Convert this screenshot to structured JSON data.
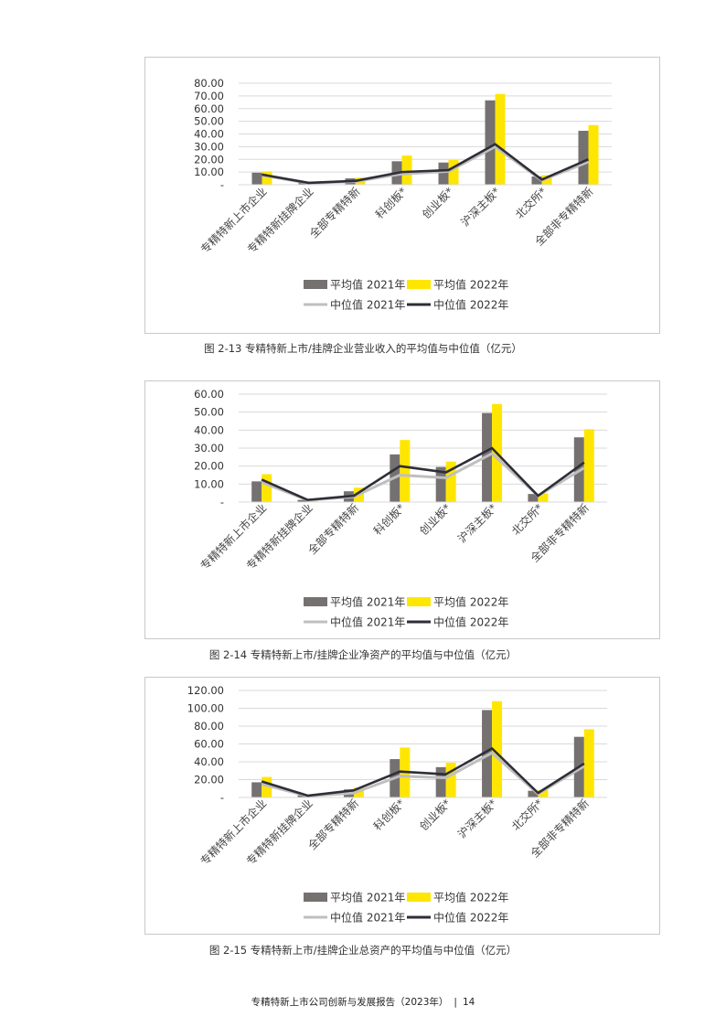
{
  "colors": {
    "avg2021": "#767171",
    "avg2022": "#ffe600",
    "med2021": "#bfbfbf",
    "med2022": "#2e2e38",
    "grid": "#d9d9d9"
  },
  "figures": [
    {
      "caption": "图 2-13 专精特新上市/挂牌企业营业收入的平均值与中位值（亿元）",
      "chart_data": {
        "type": "bar",
        "categories": [
          "专精特新上市企业",
          "专精特新挂牌企业",
          "全部专精特新",
          "科创板*",
          "创业板*",
          "沪深主板*",
          "北交所*",
          "全部非专精特新"
        ],
        "ylim": [
          0,
          80
        ],
        "yticks": [
          0,
          10,
          20,
          30,
          40,
          50,
          60,
          70,
          80
        ],
        "ytick_labels": [
          "-",
          "10.00",
          "20.00",
          "30.00",
          "40.00",
          "50.00",
          "60.00",
          "70.00",
          "80.00"
        ],
        "bar_series": [
          {
            "name": "平均值 2021年",
            "values": [
              9.5,
              1.5,
              5.0,
              18.5,
              17.5,
              66.5,
              6.5,
              42.5
            ]
          },
          {
            "name": "平均值 2022年",
            "values": [
              10.5,
              1.8,
              5.5,
              23.0,
              19.5,
              71.5,
              7.5,
              47.0
            ]
          }
        ],
        "line_series": [
          {
            "name": "中位值 2021年",
            "values": [
              7.5,
              1.2,
              2.5,
              8.5,
              10.5,
              30.0,
              3.5,
              18.0
            ]
          },
          {
            "name": "中位值 2022年",
            "values": [
              8.0,
              1.5,
              3.0,
              10.0,
              11.5,
              32.0,
              4.0,
              20.0
            ]
          }
        ],
        "legend_placement": "bottom",
        "grid": true
      }
    },
    {
      "caption": "图 2-14 专精特新上市/挂牌企业净资产的平均值与中位值（亿元）",
      "chart_data": {
        "type": "bar",
        "categories": [
          "专精特新上市企业",
          "专精特新挂牌企业",
          "全部专精特新",
          "科创板*",
          "创业板*",
          "沪深主板*",
          "北交所*",
          "全部非专精特新"
        ],
        "ylim": [
          0,
          60
        ],
        "yticks": [
          0,
          10,
          20,
          30,
          40,
          50,
          60
        ],
        "ytick_labels": [
          "-",
          "10.00",
          "20.00",
          "30.00",
          "40.00",
          "50.00",
          "60.00"
        ],
        "bar_series": [
          {
            "name": "平均值 2021年",
            "values": [
              11.5,
              1.2,
              6.0,
              26.5,
              19.5,
              49.5,
              4.5,
              36.0
            ]
          },
          {
            "name": "平均值 2022年",
            "values": [
              15.5,
              1.4,
              8.0,
              34.5,
              22.5,
              54.5,
              4.8,
              40.5
            ]
          }
        ],
        "line_series": [
          {
            "name": "中位值 2021年",
            "values": [
              11.0,
              1.0,
              3.0,
              15.0,
              13.5,
              27.0,
              3.5,
              19.0
            ]
          },
          {
            "name": "中位值 2022年",
            "values": [
              12.5,
              1.2,
              3.5,
              20.0,
              16.5,
              30.0,
              3.5,
              22.0
            ]
          }
        ],
        "legend_placement": "bottom",
        "grid": true
      }
    },
    {
      "caption": "图 2-15 专精特新上市/挂牌企业总资产的平均值与中位值（亿元）",
      "chart_data": {
        "type": "bar",
        "categories": [
          "专精特新上市企业",
          "专精特新挂牌企业",
          "全部专精特新",
          "科创板*",
          "创业板*",
          "沪深主板*",
          "北交所*",
          "全部非专精特新"
        ],
        "ylim": [
          0,
          120
        ],
        "yticks": [
          0,
          20,
          40,
          60,
          80,
          100,
          120
        ],
        "ytick_labels": [
          "-",
          "20.00",
          "40.00",
          "60.00",
          "80.00",
          "100.00",
          "120.00"
        ],
        "bar_series": [
          {
            "name": "平均值 2021年",
            "values": [
              17.0,
              2.5,
              9.0,
              43.0,
              34.0,
              98.0,
              7.5,
              68.0
            ]
          },
          {
            "name": "平均值 2022年",
            "values": [
              23.0,
              3.0,
              11.0,
              56.0,
              39.0,
              108.0,
              8.5,
              76.5
            ]
          }
        ],
        "line_series": [
          {
            "name": "中位值 2021年",
            "values": [
              15.0,
              1.5,
              5.0,
              24.0,
              22.0,
              50.0,
              4.0,
              35.0
            ]
          },
          {
            "name": "中位值 2022年",
            "values": [
              18.0,
              2.0,
              8.0,
              29.0,
              26.0,
              55.0,
              5.0,
              38.0
            ]
          }
        ],
        "legend_placement": "bottom",
        "grid": true
      }
    }
  ],
  "footer": {
    "text": "专精特新上市公司创新与发展报告（2023年）",
    "separator": "|",
    "page_number": "14"
  }
}
